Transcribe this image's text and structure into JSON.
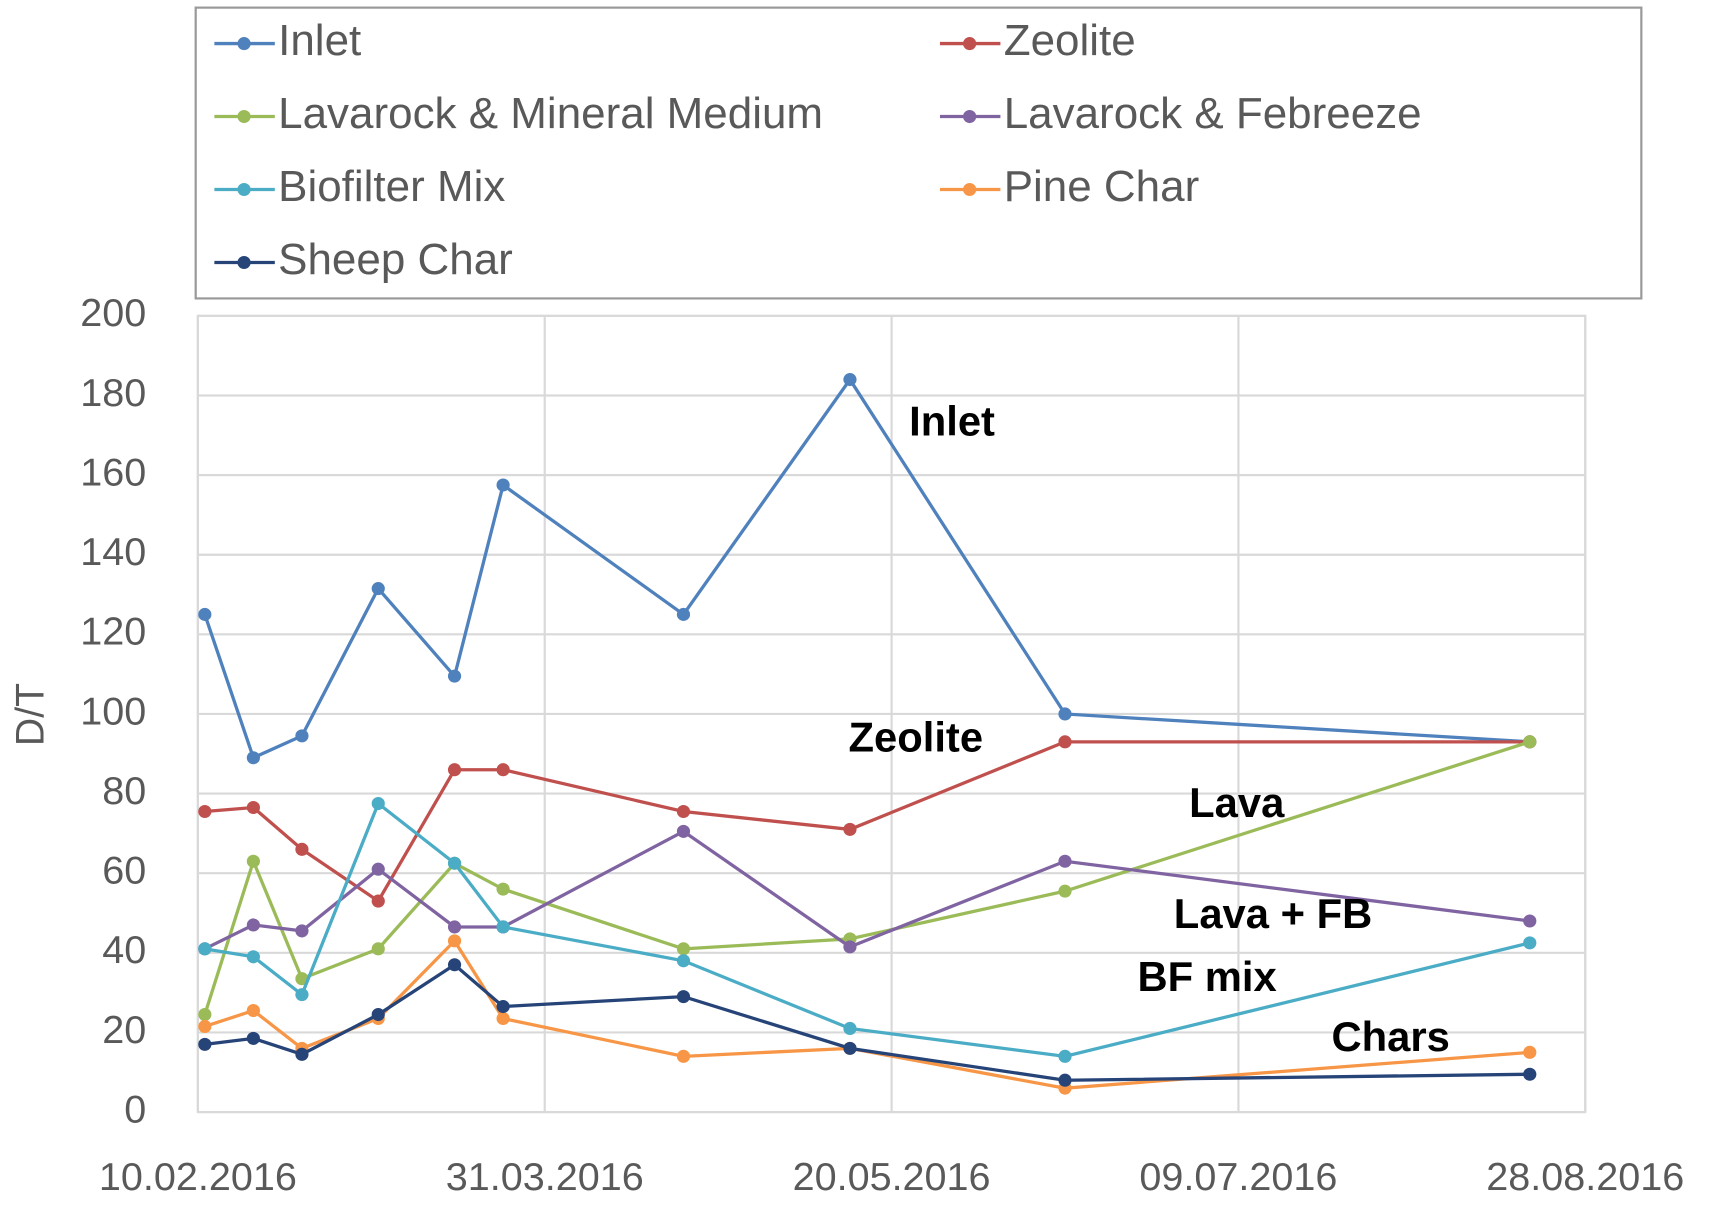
{
  "chart_data": {
    "type": "line",
    "y_label": "D/T",
    "x": [
      "11.02.2016",
      "18.02.2016",
      "25.02.2016",
      "07.03.2016",
      "18.03.2016",
      "25.03.2016",
      "20.04.2016",
      "14.05.2016",
      "14.06.2016",
      "20.08.2016"
    ],
    "xlim": [
      "10.02.2016",
      "28.08.2016"
    ],
    "xticks": [
      "10.02.2016",
      "31.03.2016",
      "20.05.2016",
      "09.07.2016",
      "28.08.2016"
    ],
    "ylim": [
      0,
      200
    ],
    "yticks": [
      0,
      20,
      40,
      60,
      80,
      100,
      120,
      140,
      160,
      180,
      200
    ],
    "grid": true,
    "legend": "top",
    "series": [
      {
        "name": "Inlet",
        "color": "#4f81bd",
        "values": [
          125,
          89,
          94.5,
          131.5,
          109.5,
          157.5,
          125,
          184,
          100,
          93
        ]
      },
      {
        "name": "Zeolite",
        "color": "#c0504d",
        "values": [
          75.5,
          76.5,
          66,
          53,
          86,
          86,
          75.5,
          71,
          93,
          93
        ]
      },
      {
        "name": "Lavarock & Mineral Medium",
        "color": "#9bbb59",
        "values": [
          24.5,
          63,
          33.5,
          41,
          62.5,
          56,
          41,
          43.5,
          55.5,
          93
        ]
      },
      {
        "name": "Lavarock & Febreeze",
        "color": "#8064a2",
        "values": [
          41,
          47,
          45.5,
          61,
          46.5,
          46.5,
          70.5,
          41.5,
          63,
          48
        ]
      },
      {
        "name": "Biofilter Mix",
        "color": "#4bacc6",
        "values": [
          41,
          39,
          29.5,
          77.5,
          62.5,
          46.5,
          38,
          21,
          14,
          42.5
        ]
      },
      {
        "name": "Pine Char",
        "color": "#f79646",
        "values": [
          21.5,
          25.5,
          16,
          23.5,
          43,
          23.5,
          14,
          16,
          6,
          15
        ]
      },
      {
        "name": "Sheep Char",
        "color": "#264478",
        "values": [
          17,
          18.5,
          14.5,
          24.5,
          37,
          26.5,
          29,
          16,
          8,
          9.5
        ]
      }
    ],
    "annotations": [
      "Inlet",
      "Zeolite",
      "Lava",
      "Lava + FB",
      "BF mix",
      "Chars"
    ]
  }
}
